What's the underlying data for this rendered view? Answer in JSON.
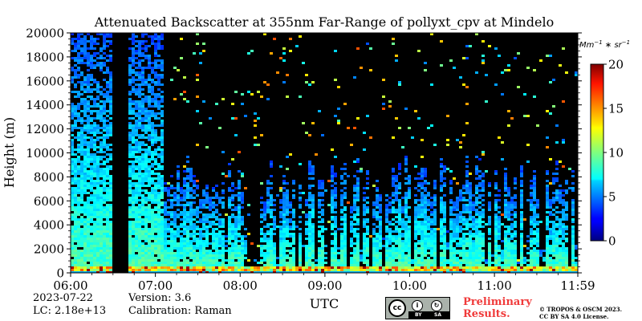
{
  "chart_data": {
    "type": "heatmap",
    "title": "Attenuated Backscatter at 355nm Far-Range of pollyxt_cpv at Mindelo",
    "xlabel": "UTC",
    "ylabel": "Height (m)",
    "x_range": [
      "06:00",
      "11:59"
    ],
    "x_ticks": [
      "06:00",
      "07:00",
      "08:00",
      "09:00",
      "10:00",
      "11:00",
      "11:59"
    ],
    "ylim": [
      0,
      20000
    ],
    "y_ticks": [
      0,
      2000,
      4000,
      6000,
      8000,
      10000,
      12000,
      14000,
      16000,
      18000,
      20000
    ],
    "colorbar": {
      "label": "Mm^{-1}*sr^{-1}",
      "min": 0,
      "max": 20,
      "ticks": [
        0,
        5,
        10,
        15,
        20
      ],
      "colormap": "jet"
    },
    "data_gap": {
      "start": "06:30",
      "end": "06:39",
      "description": "no signal"
    },
    "features": {
      "near_surface_layer_top_m": 300,
      "aerosol_layer_top_m": 6000,
      "noise_dominates_above_m": 8000
    }
  },
  "footer": {
    "date": "2023-07-22",
    "lc": "LC: 2.18e+13",
    "version": "Version: 3.6",
    "calibration": "Calibration: Raman",
    "preliminary_line1": "Preliminary",
    "preliminary_line2": "Results.",
    "copyright_line1": "© TROPOS & OSCM 2023.",
    "copyright_line2": "CC BY SA 4.0 License.",
    "cc_logo_text": "cc",
    "cc_by": "BY",
    "cc_sa": "SA"
  }
}
